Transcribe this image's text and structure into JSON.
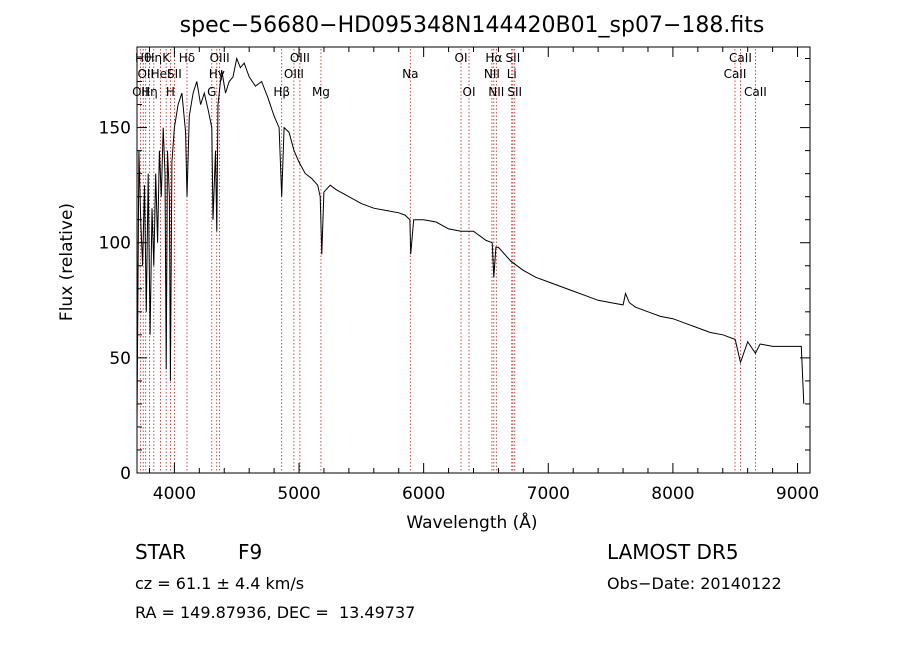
{
  "chart_data": {
    "type": "line",
    "title": "spec−56680−HD095348N144420B01_sp07−188.fits",
    "xlabel": "Wavelength (Å)",
    "ylabel": "Flux (relative)",
    "xlim": [
      3700,
      9100
    ],
    "ylim": [
      0,
      185
    ],
    "xticks": [
      4000,
      5000,
      6000,
      7000,
      8000,
      9000
    ],
    "yticks": [
      0,
      50,
      100,
      150
    ],
    "grid": false,
    "line_color": "#000000",
    "marker_color": "#b22222",
    "series": [
      {
        "x": [
          3700,
          3715,
          3730,
          3745,
          3760,
          3775,
          3790,
          3805,
          3820,
          3835,
          3850,
          3865,
          3880,
          3895,
          3910,
          3925,
          3934,
          3945,
          3960,
          3968,
          3980,
          4000,
          4030,
          4060,
          4090,
          4101,
          4120,
          4150,
          4180,
          4210,
          4240,
          4270,
          4300,
          4310,
          4330,
          4340,
          4350,
          4380,
          4410,
          4440,
          4470,
          4500,
          4530,
          4560,
          4600,
          4650,
          4700,
          4750,
          4800,
          4840,
          4861,
          4880,
          4920,
          4960,
          5000,
          5050,
          5100,
          5150,
          5170,
          5183,
          5200,
          5250,
          5300,
          5400,
          5500,
          5600,
          5700,
          5800,
          5850,
          5890,
          5896,
          5920,
          6000,
          6100,
          6200,
          6300,
          6400,
          6500,
          6550,
          6563,
          6580,
          6600,
          6700,
          6800,
          6900,
          7000,
          7100,
          7200,
          7300,
          7400,
          7500,
          7600,
          7620,
          7650,
          7700,
          7800,
          7900,
          8000,
          8100,
          8200,
          8300,
          8400,
          8500,
          8542,
          8600,
          8662,
          8700,
          8800,
          8900,
          9000,
          9030,
          9050
        ],
        "y": [
          20,
          140,
          110,
          90,
          125,
          70,
          130,
          60,
          115,
          90,
          130,
          100,
          140,
          120,
          150,
          130,
          45,
          140,
          120,
          40,
          135,
          150,
          160,
          165,
          148,
          120,
          155,
          165,
          170,
          160,
          165,
          158,
          150,
          110,
          140,
          105,
          160,
          175,
          165,
          170,
          172,
          180,
          176,
          178,
          172,
          168,
          170,
          163,
          155,
          150,
          120,
          150,
          148,
          140,
          135,
          130,
          128,
          125,
          120,
          95,
          122,
          125,
          123,
          120,
          117,
          115,
          114,
          113,
          112,
          110,
          95,
          110,
          110,
          109,
          106,
          105,
          105,
          101,
          100,
          85,
          98,
          98,
          92,
          88,
          85,
          83,
          81,
          79,
          77,
          75,
          74,
          73,
          78,
          74,
          72,
          70,
          68,
          67,
          65,
          63,
          61,
          60,
          58,
          48,
          57,
          52,
          56,
          55,
          55,
          55,
          55,
          30
        ]
      }
    ],
    "line_markers": [
      {
        "wave": 3727,
        "label": "OII",
        "row": 3
      },
      {
        "wave": 3750,
        "label": "Hθ",
        "row": 1
      },
      {
        "wave": 3770,
        "label": "OII",
        "row": 2
      },
      {
        "wave": 3800,
        "label": "Hη",
        "row": 3
      },
      {
        "wave": 3835,
        "label": "Hη",
        "row": 1
      },
      {
        "wave": 3889,
        "label": "HeI",
        "row": 2
      },
      {
        "wave": 3934,
        "label": "K",
        "row": 1
      },
      {
        "wave": 3968,
        "label": "H",
        "row": 3
      },
      {
        "wave": 4000,
        "label": "SII",
        "row": 2
      },
      {
        "wave": 4101,
        "label": "Hδ",
        "row": 1
      },
      {
        "wave": 4300,
        "label": "G",
        "row": 3
      },
      {
        "wave": 4340,
        "label": "Hγ",
        "row": 2
      },
      {
        "wave": 4363,
        "label": "OIII",
        "row": 1
      },
      {
        "wave": 4861,
        "label": "Hβ",
        "row": 3
      },
      {
        "wave": 4959,
        "label": "OIII",
        "row": 2
      },
      {
        "wave": 5007,
        "label": "OIII",
        "row": 1
      },
      {
        "wave": 5176,
        "label": "Mg",
        "row": 3
      },
      {
        "wave": 5893,
        "label": "Na",
        "row": 2
      },
      {
        "wave": 6300,
        "label": "OI",
        "row": 1
      },
      {
        "wave": 6364,
        "label": "OI",
        "row": 3
      },
      {
        "wave": 6548,
        "label": "NII",
        "row": 2
      },
      {
        "wave": 6563,
        "label": "Hα",
        "row": 1
      },
      {
        "wave": 6583,
        "label": "NII",
        "row": 3
      },
      {
        "wave": 6707,
        "label": "Li",
        "row": 2
      },
      {
        "wave": 6716,
        "label": "SII",
        "row": 1
      },
      {
        "wave": 6731,
        "label": "SII",
        "row": 3
      },
      {
        "wave": 8498,
        "label": "CaII",
        "row": 2
      },
      {
        "wave": 8542,
        "label": "CaII",
        "row": 1
      },
      {
        "wave": 8662,
        "label": "CaII",
        "row": 3
      }
    ]
  },
  "info": {
    "object_class": "STAR",
    "subclass": "F9",
    "redshift": "cz = 61.1 ± 4.4 km/s",
    "coords": "RA = 149.87936, DEC =  13.49737",
    "survey": "LAMOST DR5",
    "obs_date": "Obs−Date: 20140122"
  }
}
